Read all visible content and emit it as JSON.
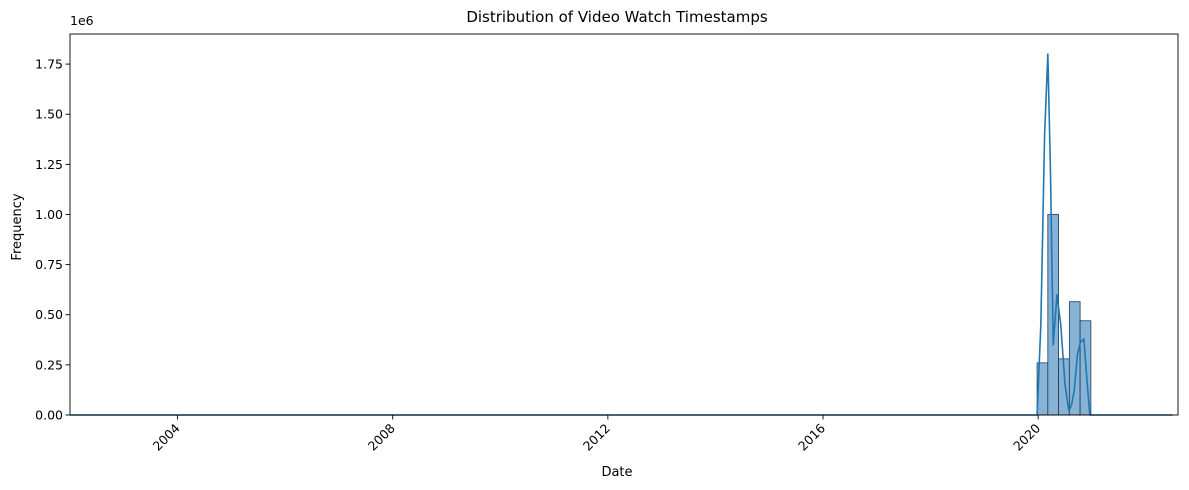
{
  "chart_data": {
    "type": "bar",
    "title": "Distribution of Video Watch Timestamps",
    "xlabel": "Date",
    "ylabel": "Frequency",
    "y_offset_label": "1e6",
    "xlim": [
      2002.0,
      2022.6
    ],
    "ylim": [
      0,
      1.9
    ],
    "x_ticks": [
      2004,
      2008,
      2012,
      2016,
      2020
    ],
    "x_tick_labels": [
      "2004",
      "2008",
      "2012",
      "2016",
      "2020"
    ],
    "y_ticks": [
      0,
      0.25,
      0.5,
      0.75,
      1.0,
      1.25,
      1.5,
      1.75
    ],
    "y_tick_labels": [
      "0.00",
      "0.25",
      "0.50",
      "0.75",
      "1.00",
      "1.25",
      "1.50",
      "1.75"
    ],
    "grid": false,
    "bar_color": "#87b3d6",
    "bar_edge_color": "#1f3b57",
    "line_color": "#1f77b4",
    "bins": [
      {
        "start": 2019.98,
        "end": 2020.18,
        "value": 0.26
      },
      {
        "start": 2020.18,
        "end": 2020.38,
        "value": 1.0
      },
      {
        "start": 2020.38,
        "end": 2020.58,
        "value": 0.28
      },
      {
        "start": 2020.58,
        "end": 2020.78,
        "value": 0.565
      },
      {
        "start": 2020.78,
        "end": 2020.98,
        "value": 0.47
      }
    ],
    "kde": {
      "x": [
        2002.0,
        2019.7,
        2019.98,
        2020.05,
        2020.12,
        2020.18,
        2020.23,
        2020.28,
        2020.35,
        2020.42,
        2020.5,
        2020.57,
        2020.62,
        2020.67,
        2020.73,
        2020.78,
        2020.85,
        2020.9,
        2020.96,
        2021.05,
        2021.3,
        2022.5
      ],
      "y": [
        0.0,
        0.0,
        0.0,
        0.45,
        1.4,
        1.8,
        1.2,
        0.35,
        0.6,
        0.45,
        0.15,
        0.02,
        0.05,
        0.12,
        0.3,
        0.36,
        0.38,
        0.2,
        0.0,
        0.0,
        0.0,
        0.0
      ]
    }
  }
}
